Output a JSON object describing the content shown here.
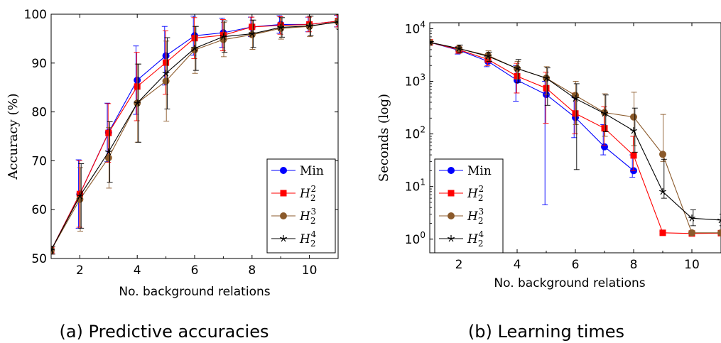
{
  "chart_data": [
    {
      "type": "line",
      "caption": "(a) Predictive accuracies",
      "xlabel": "No. background relations",
      "ylabel": "Accuracy (%)",
      "xlim": [
        1,
        11
      ],
      "ylim": [
        50,
        100
      ],
      "xticks": [
        2,
        4,
        6,
        8,
        10
      ],
      "yticks": [
        50,
        60,
        70,
        80,
        90,
        100
      ],
      "yscale": "linear",
      "legend_position": "bottom-right",
      "x": [
        1,
        2,
        3,
        4,
        5,
        6,
        7,
        8,
        9,
        10,
        11
      ],
      "series": [
        {
          "name": "Min",
          "base": "Min",
          "sup": "",
          "color": "#0000ff",
          "marker": "circle",
          "values": [
            51.7,
            63.2,
            75.8,
            86.5,
            91.5,
            95.6,
            96.2,
            97.4,
            97.9,
            97.9,
            98.6
          ],
          "errors": [
            0.8,
            7,
            6,
            7,
            6,
            4,
            3,
            2,
            1.8,
            1.5,
            1.2
          ]
        },
        {
          "name": "H22",
          "base": "H",
          "sup": "2",
          "color": "#ff0000",
          "marker": "square",
          "values": [
            51.7,
            63.2,
            75.7,
            85.2,
            90.1,
            95.1,
            95.7,
            97.4,
            97.7,
            97.9,
            98.6
          ],
          "errors": [
            0.8,
            6.8,
            6,
            7,
            6.5,
            4.2,
            3.2,
            2,
            1.8,
            1.5,
            1.2
          ]
        },
        {
          "name": "H23",
          "base": "H",
          "sup": "3",
          "color": "#8b5a2b",
          "marker": "circle",
          "values": [
            51.7,
            62.1,
            70.6,
            81.8,
            86.3,
            92.7,
            94.8,
            95.8,
            97.1,
            97.5,
            98.5
          ],
          "errors": [
            0.8,
            6.5,
            6.2,
            8,
            8.2,
            4.8,
            3.5,
            3,
            2.2,
            2.1,
            1.4
          ]
        },
        {
          "name": "H24",
          "base": "H",
          "sup": "4",
          "color": "#000000",
          "marker": "star",
          "values": [
            51.7,
            62.8,
            71.8,
            81.8,
            87.9,
            93.0,
            95.4,
            96.0,
            97.3,
            97.6,
            98.4
          ],
          "errors": [
            0.8,
            6.6,
            6.2,
            8,
            7.3,
            4.5,
            3.2,
            2.8,
            2,
            2,
            1.5
          ]
        }
      ]
    },
    {
      "type": "line",
      "caption": "(b) Learning times",
      "xlabel": "No. background relations",
      "ylabel": "Seconds (log)",
      "xlim": [
        1,
        11
      ],
      "ylim": [
        0.55,
        13000
      ],
      "xticks": [
        2,
        4,
        6,
        8,
        10
      ],
      "yticks": [
        1,
        10,
        100,
        1000,
        10000
      ],
      "yticks_exp": [
        "0",
        "1",
        "2",
        "3",
        "4"
      ],
      "yscale": "log",
      "legend_position": "bottom-left",
      "x": [
        1,
        2,
        3,
        4,
        5,
        6,
        7,
        8,
        9,
        10,
        11
      ],
      "series": [
        {
          "name": "Min",
          "base": "Min",
          "sup": "",
          "color": "#0000ff",
          "marker": "circle",
          "x": [
            1,
            2,
            3,
            4,
            5,
            6,
            7,
            8
          ],
          "values": [
            5500,
            3900,
            2400,
            1050,
            560,
            205,
            57,
            20
          ],
          "err_lo": [
            5300,
            3300,
            1900,
            420,
            4.5,
            85,
            40,
            15
          ],
          "err_hi": [
            5700,
            4500,
            3000,
            2000,
            1000,
            500,
            150,
            40
          ]
        },
        {
          "name": "H22",
          "base": "H",
          "sup": "2",
          "color": "#ff0000",
          "marker": "square",
          "x": [
            1,
            2,
            3,
            4,
            5,
            6,
            7,
            8,
            9,
            10,
            11
          ],
          "values": [
            5500,
            4000,
            2600,
            1250,
            740,
            245,
            128,
            39,
            1.32,
            1.28,
            1.3
          ],
          "err_lo": [
            5300,
            3400,
            2000,
            600,
            160,
            100,
            60,
            20,
            1.25,
            1.2,
            1.22
          ],
          "err_hi": [
            5700,
            4600,
            3200,
            2200,
            1500,
            600,
            330,
            90,
            1.4,
            1.36,
            1.38
          ]
        },
        {
          "name": "H23",
          "base": "H",
          "sup": "3",
          "color": "#8b5a2b",
          "marker": "circle",
          "x": [
            1,
            2,
            3,
            4,
            5,
            6,
            7,
            8,
            9,
            10,
            11
          ],
          "values": [
            5500,
            4200,
            3100,
            1750,
            1150,
            540,
            255,
            210,
            41,
            1.32,
            1.32
          ],
          "err_lo": [
            5300,
            3500,
            2500,
            1100,
            560,
            150,
            90,
            60,
            30,
            1.25,
            1.25
          ],
          "err_hi": [
            5700,
            4900,
            3800,
            2400,
            1900,
            1000,
            580,
            620,
            235,
            1.4,
            1.4
          ]
        },
        {
          "name": "H24",
          "base": "H",
          "sup": "4",
          "color": "#000000",
          "marker": "star",
          "x": [
            1,
            2,
            3,
            4,
            5,
            6,
            7,
            8,
            9,
            10,
            11
          ],
          "values": [
            5500,
            4200,
            3000,
            1750,
            1150,
            470,
            245,
            115,
            8,
            2.5,
            2.3
          ],
          "err_lo": [
            5300,
            3500,
            2400,
            950,
            350,
            21,
            110,
            45,
            6,
            1.8,
            1.8
          ],
          "err_hi": [
            5700,
            4900,
            3600,
            2600,
            1800,
            900,
            550,
            310,
            33,
            3.6,
            3
          ]
        }
      ]
    }
  ]
}
